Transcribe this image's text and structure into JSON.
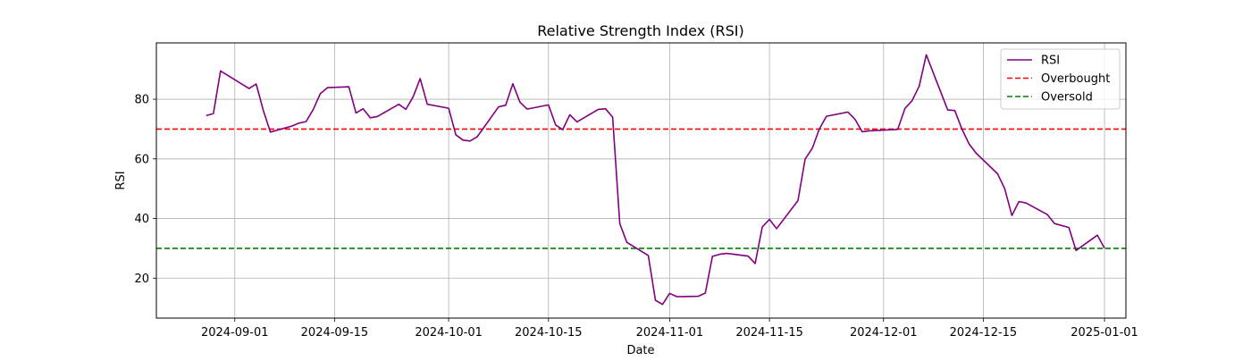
{
  "chart_data": {
    "type": "line",
    "title": "Relative Strength Index (RSI)",
    "xlabel": "Date",
    "ylabel": "RSI",
    "x_ticks": [
      "2024-09-01",
      "2024-09-15",
      "2024-10-01",
      "2024-10-15",
      "2024-11-01",
      "2024-11-15",
      "2024-12-01",
      "2024-12-15",
      "2025-01-01"
    ],
    "y_ticks": [
      20,
      40,
      60,
      80
    ],
    "xlim": [
      "2024-08-21",
      "2025-01-04"
    ],
    "ylim": [
      6.6,
      98.9
    ],
    "grid": true,
    "legend_position": "top-right",
    "series": [
      {
        "name": "RSI",
        "color": "#800080",
        "style": "solid",
        "points": [
          [
            "2024-08-28",
            74.5
          ],
          [
            "2024-08-29",
            75.2
          ],
          [
            "2024-08-30",
            89.5
          ],
          [
            "2024-09-03",
            83.6
          ],
          [
            "2024-09-04",
            85.1
          ],
          [
            "2024-09-05",
            76.2
          ],
          [
            "2024-09-06",
            69.0
          ],
          [
            "2024-09-09",
            71.0
          ],
          [
            "2024-09-10",
            72.0
          ],
          [
            "2024-09-11",
            72.5
          ],
          [
            "2024-09-12",
            76.5
          ],
          [
            "2024-09-13",
            81.9
          ],
          [
            "2024-09-14",
            83.9
          ],
          [
            "2024-09-17",
            84.2
          ],
          [
            "2024-09-18",
            75.4
          ],
          [
            "2024-09-19",
            76.8
          ],
          [
            "2024-09-20",
            73.8
          ],
          [
            "2024-09-21",
            74.2
          ],
          [
            "2024-09-24",
            78.3
          ],
          [
            "2024-09-25",
            76.6
          ],
          [
            "2024-09-26",
            80.7
          ],
          [
            "2024-09-27",
            86.9
          ],
          [
            "2024-09-28",
            78.3
          ],
          [
            "2024-10-01",
            77.0
          ],
          [
            "2024-10-02",
            68.1
          ],
          [
            "2024-10-03",
            66.3
          ],
          [
            "2024-10-04",
            66.0
          ],
          [
            "2024-10-05",
            67.4
          ],
          [
            "2024-10-08",
            77.4
          ],
          [
            "2024-10-09",
            78.0
          ],
          [
            "2024-10-10",
            85.2
          ],
          [
            "2024-10-11",
            79.0
          ],
          [
            "2024-10-12",
            76.7
          ],
          [
            "2024-10-15",
            78.1
          ],
          [
            "2024-10-16",
            71.4
          ],
          [
            "2024-10-17",
            69.8
          ],
          [
            "2024-10-18",
            74.8
          ],
          [
            "2024-10-19",
            72.4
          ],
          [
            "2024-10-22",
            76.6
          ],
          [
            "2024-10-23",
            76.8
          ],
          [
            "2024-10-24",
            74.0
          ],
          [
            "2024-10-25",
            38.3
          ],
          [
            "2024-10-26",
            32.0
          ],
          [
            "2024-10-29",
            27.6
          ],
          [
            "2024-10-30",
            12.6
          ],
          [
            "2024-10-31",
            11.2
          ],
          [
            "2024-11-01",
            14.9
          ],
          [
            "2024-11-02",
            13.8
          ],
          [
            "2024-11-05",
            13.9
          ],
          [
            "2024-11-06",
            15.0
          ],
          [
            "2024-11-07",
            27.3
          ],
          [
            "2024-11-08",
            28.0
          ],
          [
            "2024-11-09",
            28.3
          ],
          [
            "2024-11-12",
            27.4
          ],
          [
            "2024-11-13",
            24.9
          ],
          [
            "2024-11-14",
            37.2
          ],
          [
            "2024-11-15",
            39.7
          ],
          [
            "2024-11-16",
            36.6
          ],
          [
            "2024-11-19",
            46.0
          ],
          [
            "2024-11-20",
            59.9
          ],
          [
            "2024-11-21",
            63.5
          ],
          [
            "2024-11-22",
            70.0
          ],
          [
            "2024-11-23",
            74.3
          ],
          [
            "2024-11-26",
            75.7
          ],
          [
            "2024-11-27",
            73.3
          ],
          [
            "2024-11-28",
            69.1
          ],
          [
            "2024-11-29",
            69.4
          ],
          [
            "2024-12-03",
            69.9
          ],
          [
            "2024-12-04",
            76.9
          ],
          [
            "2024-12-05",
            79.5
          ],
          [
            "2024-12-06",
            84.3
          ],
          [
            "2024-12-07",
            94.9
          ],
          [
            "2024-12-10",
            76.4
          ],
          [
            "2024-12-11",
            76.2
          ],
          [
            "2024-12-12",
            70.0
          ],
          [
            "2024-12-13",
            65.0
          ],
          [
            "2024-12-14",
            61.9
          ],
          [
            "2024-12-17",
            55.0
          ],
          [
            "2024-12-18",
            50.0
          ],
          [
            "2024-12-19",
            41.0
          ],
          [
            "2024-12-20",
            45.7
          ],
          [
            "2024-12-21",
            45.2
          ],
          [
            "2024-12-24",
            41.3
          ],
          [
            "2024-12-25",
            38.3
          ],
          [
            "2024-12-27",
            37.0
          ],
          [
            "2024-12-28",
            29.3
          ],
          [
            "2024-12-31",
            34.4
          ],
          [
            "2025-01-01",
            30.0
          ]
        ]
      },
      {
        "name": "Overbought",
        "color": "#ff0000",
        "style": "dashed",
        "y": 70
      },
      {
        "name": "Oversold",
        "color": "#008000",
        "style": "dashed",
        "y": 30
      }
    ]
  }
}
